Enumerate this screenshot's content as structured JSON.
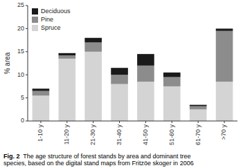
{
  "chart_data": {
    "type": "bar",
    "stacked": true,
    "categories": [
      "1-10 y",
      "11-20 y",
      "21-30 y",
      "31-40 y",
      "41-50 y",
      "51-60 y",
      "61-70 y",
      ">70 y"
    ],
    "series": [
      {
        "name": "Spruce",
        "color": "#d4d4d4",
        "values": [
          5.5,
          13.5,
          15.0,
          8.0,
          8.5,
          7.5,
          2.5,
          8.5
        ]
      },
      {
        "name": "Pine",
        "color": "#8c8c8c",
        "values": [
          1.0,
          0.7,
          2.0,
          2.0,
          3.5,
          2.0,
          0.7,
          11.0
        ]
      },
      {
        "name": "Deciduous",
        "color": "#1a1a1a",
        "values": [
          0.5,
          0.5,
          1.0,
          1.5,
          2.5,
          1.0,
          0.3,
          0.5
        ]
      }
    ],
    "y_label": "% area",
    "ylim": [
      0,
      25
    ],
    "yticks": [
      0,
      5,
      10,
      15,
      20,
      25
    ],
    "grid": false,
    "legend": "upper left",
    "annotations": [
      "Fig. 2",
      "  The age structure of forest stands by area and dominant tree\nspecies, based on the digital stand maps from Fritzöe skoger in 2006"
    ]
  }
}
